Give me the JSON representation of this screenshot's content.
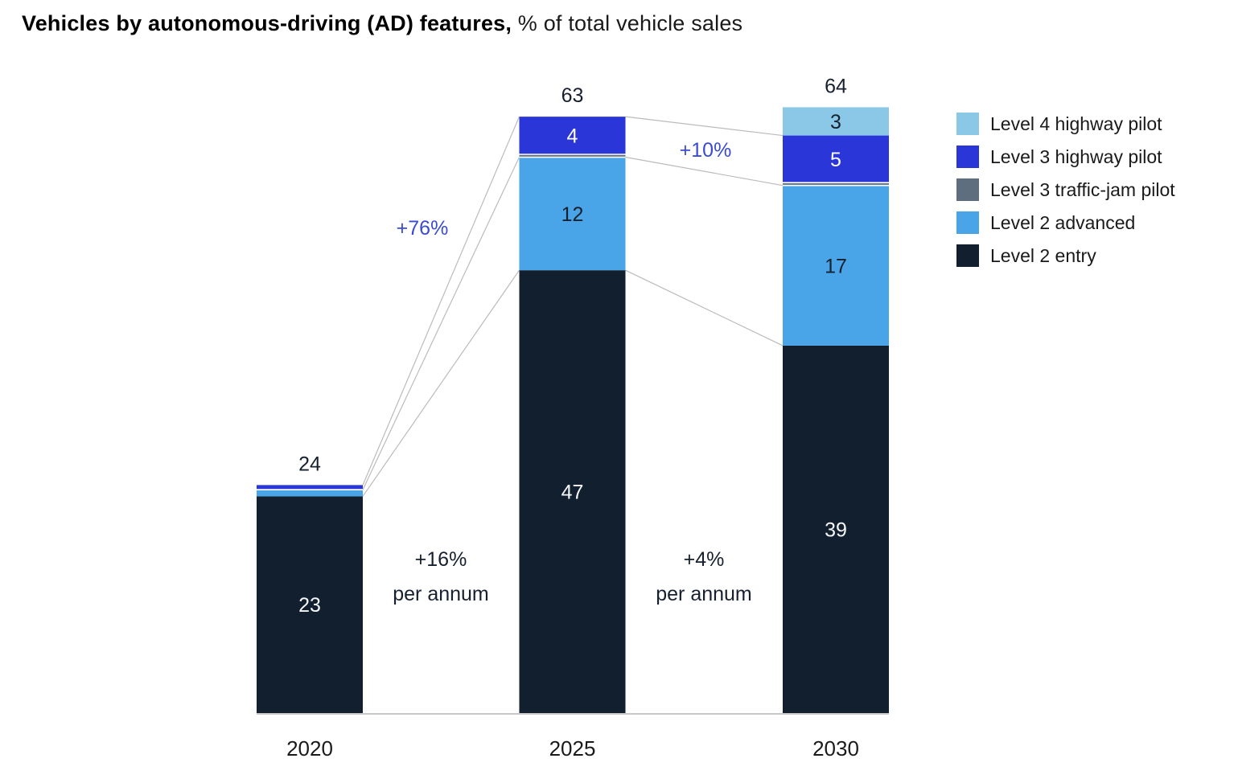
{
  "header": {
    "title_bold": "Vehicles by autonomous-driving (AD) features,",
    "title_regular": " % of total vehicle sales"
  },
  "chart_data": {
    "type": "bar",
    "stacked": true,
    "title": "Vehicles by autonomous-driving (AD) features, % of total vehicle sales",
    "xlabel": "",
    "ylabel": "% of total vehicle sales",
    "grid": false,
    "legend_position": "top-right",
    "categories": [
      "2020",
      "2025",
      "2030"
    ],
    "totals": [
      24,
      63,
      64
    ],
    "total_labels": [
      "24",
      "63",
      "64"
    ],
    "series": [
      {
        "name": "Level 2 entry",
        "color": "#121f2e",
        "label_color": "#f5f7f9",
        "values": [
          23,
          47,
          39
        ],
        "labels": [
          "23",
          "47",
          "39"
        ]
      },
      {
        "name": "Level 2 advanced",
        "color": "#4aa4e8",
        "label_color": "#16202e",
        "values": [
          0.7,
          12,
          17
        ],
        "labels": [
          "",
          "12",
          "17"
        ]
      },
      {
        "name": "Level 3 traffic-jam pilot",
        "color": "#5e6e7e",
        "label_color": "#ffffff",
        "values": [
          0,
          0.3,
          0.3
        ],
        "labels": [
          "",
          "",
          ""
        ]
      },
      {
        "name": "Level 3 highway pilot",
        "color": "#2a36d8",
        "label_color": "#ffffff",
        "values": [
          0.5,
          4,
          5
        ],
        "labels": [
          "",
          "4",
          "5"
        ]
      },
      {
        "name": "Level 4 highway pilot",
        "color": "#8bc8e7",
        "label_color": "#16202e",
        "values": [
          0,
          0,
          3
        ],
        "labels": [
          "",
          "",
          "3"
        ]
      }
    ],
    "legend": [
      {
        "label": "Level 4 highway pilot",
        "color": "#8bc8e7"
      },
      {
        "label": "Level 3 highway pilot",
        "color": "#2a36d8"
      },
      {
        "label": "Level 3 traffic-jam pilot",
        "color": "#5e6e7e"
      },
      {
        "label": "Level 2 advanced",
        "color": "#4aa4e8"
      },
      {
        "label": "Level 2 entry",
        "color": "#121f2e"
      }
    ],
    "annotations": {
      "growth_2020_2025": "+76%",
      "growth_2025_2030": "+10%",
      "cagr_2020_2025_line1": "+16%",
      "cagr_2020_2025_line2": "per annum",
      "cagr_2025_2030_line1": "+4%",
      "cagr_2025_2030_line2": "per annum"
    },
    "colors": {
      "annotation_blue": "#3a4bd3",
      "text_dark": "#16202e",
      "connector_gray": "#bbbbbb",
      "axis_line": "#c9c9c9",
      "separator_white": "#ffffff"
    }
  }
}
